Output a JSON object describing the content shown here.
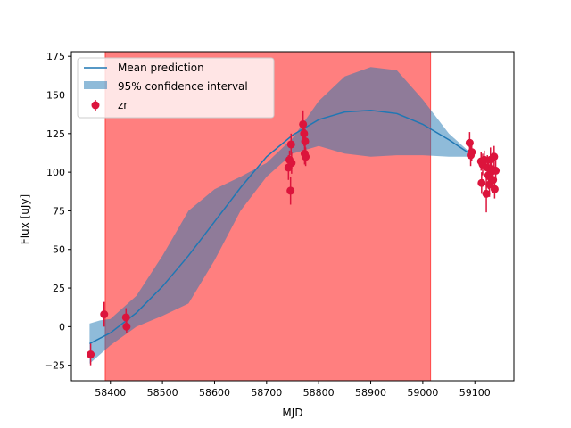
{
  "chart_data": {
    "type": "line",
    "title": "",
    "xlabel": "MJD",
    "ylabel": "Flux [uJy]",
    "xlim": [
      58325,
      59175
    ],
    "ylim": [
      -35,
      178
    ],
    "xticks": [
      58400,
      58500,
      58600,
      58700,
      58800,
      58900,
      59000,
      59100
    ],
    "yticks": [
      -25,
      0,
      25,
      50,
      75,
      100,
      125,
      150,
      175
    ],
    "grid": false,
    "legend_position": "top-left",
    "shaded_region": {
      "x_start": 58390,
      "x_end": 59015,
      "color": "#ff0000",
      "alpha": 0.5
    },
    "series": [
      {
        "name": "Mean prediction",
        "kind": "line",
        "color": "#1f77b4",
        "x": [
          58360,
          58400,
          58450,
          58500,
          58550,
          58600,
          58650,
          58700,
          58750,
          58800,
          58850,
          58900,
          58950,
          59000,
          59050,
          59090
        ],
        "y": [
          -11,
          -4,
          9,
          26,
          46,
          68,
          90,
          110,
          124,
          134,
          139,
          140,
          138,
          131,
          121,
          112
        ]
      },
      {
        "name": "95% confidence interval",
        "kind": "band",
        "color": "#1f77b4",
        "x": [
          58360,
          58380,
          58400,
          58450,
          58500,
          58550,
          58600,
          58650,
          58700,
          58750,
          58800,
          58850,
          58900,
          58950,
          59000,
          59050,
          59090
        ],
        "upper": [
          2,
          4,
          5,
          20,
          46,
          75,
          89,
          97,
          106,
          122,
          146,
          162,
          168,
          166,
          147,
          125,
          113
        ],
        "lower": [
          -24,
          -18,
          -12,
          0,
          7,
          15,
          43,
          75,
          97,
          112,
          117,
          112,
          110,
          111,
          111,
          110,
          110
        ]
      },
      {
        "name": "zr",
        "kind": "errorbar",
        "color": "#dc143c",
        "points": [
          {
            "x": 58362,
            "y": -18,
            "err": 7
          },
          {
            "x": 58388,
            "y": 8,
            "err": 8
          },
          {
            "x": 58430,
            "y": 6,
            "err": 6
          },
          {
            "x": 58431,
            "y": 0,
            "err": 4
          },
          {
            "x": 58742,
            "y": 103,
            "err": 8
          },
          {
            "x": 58744,
            "y": 108,
            "err": 6
          },
          {
            "x": 58746,
            "y": 88,
            "err": 9
          },
          {
            "x": 58747,
            "y": 118,
            "err": 7
          },
          {
            "x": 58748,
            "y": 106,
            "err": 7
          },
          {
            "x": 58770,
            "y": 131,
            "err": 9
          },
          {
            "x": 58772,
            "y": 125,
            "err": 8
          },
          {
            "x": 58773,
            "y": 112,
            "err": 7
          },
          {
            "x": 58774,
            "y": 120,
            "err": 8
          },
          {
            "x": 58775,
            "y": 110,
            "err": 6
          },
          {
            "x": 59090,
            "y": 119,
            "err": 7
          },
          {
            "x": 59092,
            "y": 111,
            "err": 7
          },
          {
            "x": 59094,
            "y": 113,
            "err": 6
          },
          {
            "x": 59112,
            "y": 107,
            "err": 6
          },
          {
            "x": 59113,
            "y": 93,
            "err": 7
          },
          {
            "x": 59115,
            "y": 105,
            "err": 7
          },
          {
            "x": 59118,
            "y": 108,
            "err": 6
          },
          {
            "x": 59122,
            "y": 86,
            "err": 12
          },
          {
            "x": 59124,
            "y": 103,
            "err": 8
          },
          {
            "x": 59126,
            "y": 98,
            "err": 9
          },
          {
            "x": 59128,
            "y": 92,
            "err": 8
          },
          {
            "x": 59130,
            "y": 108,
            "err": 8
          },
          {
            "x": 59131,
            "y": 100,
            "err": 7
          },
          {
            "x": 59133,
            "y": 102,
            "err": 6
          },
          {
            "x": 59135,
            "y": 95,
            "err": 7
          },
          {
            "x": 59137,
            "y": 110,
            "err": 7
          },
          {
            "x": 59138,
            "y": 89,
            "err": 6
          },
          {
            "x": 59140,
            "y": 101,
            "err": 6
          }
        ]
      }
    ]
  }
}
